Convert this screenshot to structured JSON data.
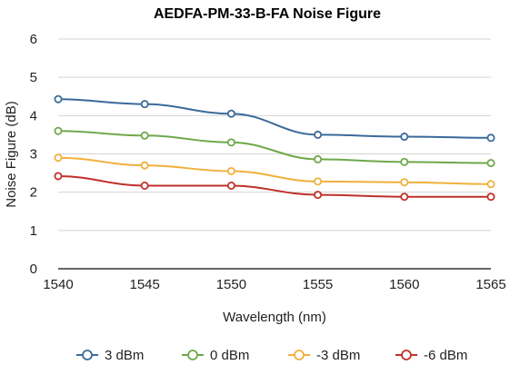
{
  "chart_data": {
    "type": "line",
    "title": "AEDFA-PM-33-B-FA Noise Figure",
    "xlabel": "Wavelength (nm)",
    "ylabel": "Noise Figure (dB)",
    "x": [
      1540,
      1545,
      1550,
      1555,
      1560,
      1565
    ],
    "xlim": [
      1540,
      1565
    ],
    "ylim": [
      0,
      6
    ],
    "xticks": [
      "1540",
      "1545",
      "1550",
      "1555",
      "1560",
      "1565"
    ],
    "yticks": [
      "0",
      "1",
      "2",
      "3",
      "4",
      "5",
      "6"
    ],
    "grid": "horizontal",
    "legend_position": "bottom",
    "series": [
      {
        "name": "3 dBm",
        "color": "#3a6a9a",
        "values": [
          4.43,
          4.3,
          4.05,
          3.5,
          3.45,
          3.42
        ]
      },
      {
        "name": "0 dBm",
        "color": "#6ea84a",
        "values": [
          3.6,
          3.48,
          3.3,
          2.86,
          2.79,
          2.76
        ]
      },
      {
        "name": "-3 dBm",
        "color": "#f0b03c",
        "values": [
          2.9,
          2.7,
          2.55,
          2.28,
          2.26,
          2.21
        ]
      },
      {
        "name": "-6 dBm",
        "color": "#c0302a",
        "values": [
          2.42,
          2.17,
          2.17,
          1.93,
          1.88,
          1.88
        ]
      }
    ]
  }
}
